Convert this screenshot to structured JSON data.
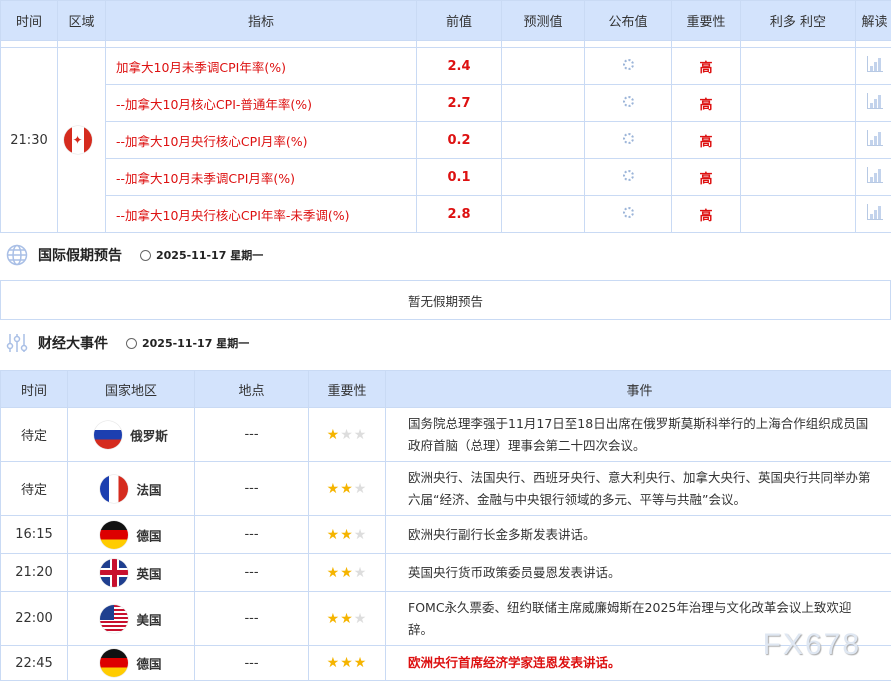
{
  "top_table": {
    "headers": [
      "时间",
      "区域",
      "指标",
      "前值",
      "预测值",
      "公布值",
      "重要性",
      "利多 利空",
      "解读"
    ],
    "time": "21:30",
    "region_flag": "canada-flag",
    "rows": [
      {
        "indicator": "加拿大10月未季调CPI年率(%)",
        "prev": "2.4",
        "importance": "高"
      },
      {
        "indicator": "--加拿大10月核心CPI-普通年率(%)",
        "prev": "2.7",
        "importance": "高"
      },
      {
        "indicator": "--加拿大10月央行核心CPI月率(%)",
        "prev": "0.2",
        "importance": "高"
      },
      {
        "indicator": "--加拿大10月未季调CPI月率(%)",
        "prev": "0.1",
        "importance": "高"
      },
      {
        "indicator": "--加拿大10月央行核心CPI年率-未季调(%)",
        "prev": "2.8",
        "importance": "高"
      }
    ]
  },
  "holidays": {
    "title": "国际假期预告",
    "date": "2025-11-17 星期一",
    "empty": "暂无假期预告"
  },
  "events": {
    "title": "财经大事件",
    "date": "2025-11-17 星期一",
    "headers": [
      "时间",
      "国家地区",
      "地点",
      "重要性",
      "事件"
    ],
    "rows": [
      {
        "time": "待定",
        "country": "俄罗斯",
        "flag": "russia",
        "place": "---",
        "stars": 1,
        "event": "国务院总理李强于11月17日至18日出席在俄罗斯莫斯科举行的上海合作组织成员国政府首脑（总理）理事会第二十四次会议。",
        "highlight": false
      },
      {
        "time": "待定",
        "country": "法国",
        "flag": "france",
        "place": "---",
        "stars": 2,
        "event": "欧洲央行、法国央行、西班牙央行、意大利央行、加拿大央行、英国央行共同举办第六届“经济、金融与中央银行领域的多元、平等与共融”会议。",
        "highlight": false
      },
      {
        "time": "16:15",
        "country": "德国",
        "flag": "germany",
        "place": "---",
        "stars": 2,
        "event": "欧洲央行副行长金多斯发表讲话。",
        "highlight": false
      },
      {
        "time": "21:20",
        "country": "英国",
        "flag": "uk",
        "place": "---",
        "stars": 2,
        "event": "英国央行货币政策委员曼恩发表讲话。",
        "highlight": false
      },
      {
        "time": "22:00",
        "country": "美国",
        "flag": "usa",
        "place": "---",
        "stars": 2,
        "event": "FOMC永久票委、纽约联储主席威廉姆斯在2025年治理与文化改革会议上致欢迎辞。",
        "highlight": false
      },
      {
        "time": "22:45",
        "country": "德国",
        "flag": "germany",
        "place": "---",
        "stars": 3,
        "event": "欧洲央行首席经济学家连恩发表讲话。",
        "highlight": true
      }
    ]
  },
  "watermark": "FX678",
  "colors": {
    "header_bg": "#d3e3fc",
    "accent_red": "#dd1111",
    "star": "#f5b400"
  }
}
